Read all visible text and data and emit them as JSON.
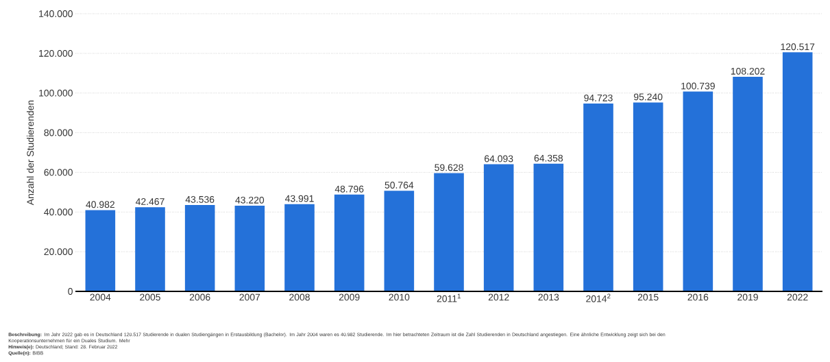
{
  "chart_data": {
    "type": "bar",
    "ylabel": "Anzahl der Studierenden",
    "categories": [
      "2004",
      "2005",
      "2006",
      "2007",
      "2008",
      "2009",
      "2010",
      "2011$^{1}$",
      "2012",
      "2013",
      "2014$^{2}$",
      "2015",
      "2016",
      "2019",
      "2022"
    ],
    "values": [
      40982,
      42467,
      43536,
      43220,
      43991,
      48796,
      50764,
      59628,
      64093,
      64358,
      94723,
      95240,
      100739,
      108202,
      120517
    ],
    "value_labels": [
      "40.982",
      "42.467",
      "43.536",
      "43.220",
      "43.991",
      "48.796",
      "50.764",
      "59.628",
      "64.093",
      "64.358",
      "94.723",
      "95.240",
      "100.739",
      "108.202",
      "120.517"
    ],
    "color": "#2471d9",
    "ylim": [
      0,
      140000
    ],
    "yticks": [
      0,
      {
        "value": 20000,
        "label": "20.000"
      },
      {
        "value": 40000,
        "label": "40.000"
      },
      {
        "value": 60000,
        "label": "60.000"
      },
      {
        "value": 80000,
        "label": "80.000"
      },
      {
        "value": 100000,
        "label": "100.000"
      },
      {
        "value": 120000,
        "label": "120.000"
      },
      {
        "value": 140000,
        "label": "140.000"
      }
    ],
    "grid": "y",
    "annotations": [
      "**Beschreibung:** Im Jahr 2022 gab es in Deutschland 120.517 Studierende in dualen Studiengängen in Erstausbildung (Bachelor). Im Jahr 2004 waren es 40.982 Studierende. Im hier betrachteten Zeitraum ist die Zahl Studierenden in Deutschland angestiegen. Eine ähnliche Entwicklung zeigt sich bei den Kooperationsunternehmen für ein Duales Studium. Mehr",
      "**Hinweis(e):** Deutschland; Stand: 28. Februar 2022",
      "**Quelle(n):** BIBB"
    ]
  }
}
